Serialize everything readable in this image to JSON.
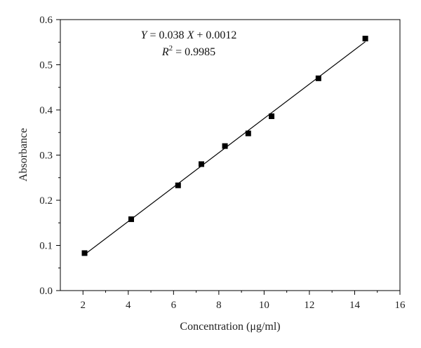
{
  "chart_data": {
    "type": "scatter",
    "xlabel": "Concentration (μg/ml)",
    "ylabel": "Absorbance",
    "xlim": [
      1,
      16
    ],
    "ylim": [
      0,
      0.6
    ],
    "x_ticks": [
      2,
      4,
      6,
      8,
      10,
      12,
      14,
      16
    ],
    "y_ticks": [
      0.0,
      0.1,
      0.2,
      0.3,
      0.4,
      0.5,
      0.6
    ],
    "x_tick_labels": [
      "2",
      "4",
      "6",
      "8",
      "10",
      "12",
      "14",
      "16"
    ],
    "y_tick_labels": [
      "0.0",
      "0.1",
      "0.2",
      "0.3",
      "0.4",
      "0.5",
      "0.6"
    ],
    "grid": false,
    "series": [
      {
        "marker": "square",
        "color": "#000000",
        "x": [
          2.07,
          4.13,
          6.2,
          7.23,
          8.27,
          9.3,
          10.33,
          12.4,
          14.47
        ],
        "y": [
          0.083,
          0.158,
          0.233,
          0.28,
          0.32,
          0.348,
          0.386,
          0.47,
          0.558
        ]
      }
    ],
    "fit_line": {
      "slope": 0.038,
      "intercept": 0.0012,
      "x_range": [
        2.07,
        14.47
      ],
      "color": "#000000"
    },
    "annotations": {
      "equation": {
        "lhs": "Y",
        "mid": " = 0.038 ",
        "var": "X",
        "rhs": " + 0.0012"
      },
      "r_squared": {
        "symbol": "R",
        "exponent": "2",
        "value": " = 0.9985"
      }
    }
  }
}
